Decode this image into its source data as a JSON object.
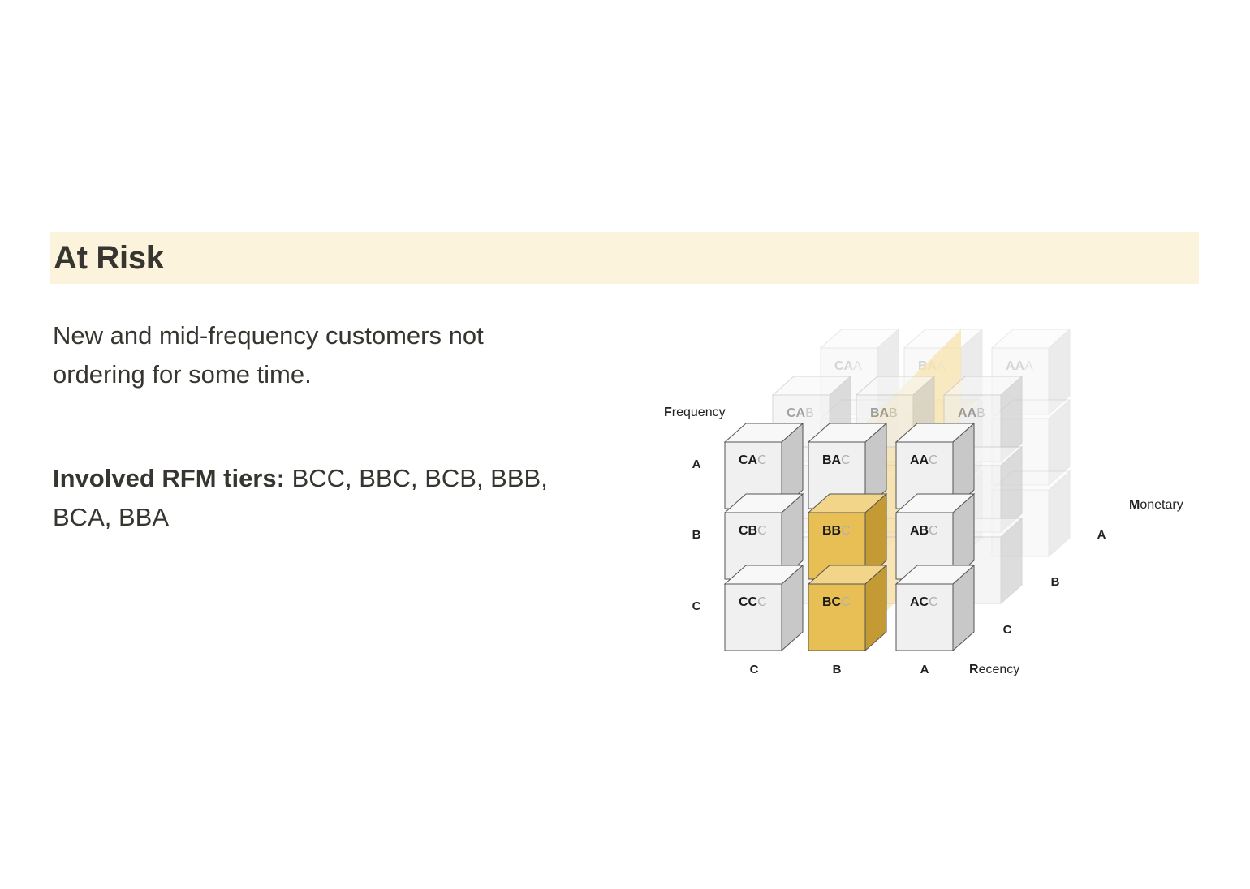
{
  "section": {
    "title": "At Risk",
    "description": "New and mid-frequency customers not ordering for some time.",
    "tiers_label": "Involved RFM tiers:",
    "tiers_list": "BCC, BBC, BCB, BBB, BCA, BBA"
  },
  "diagram": {
    "axis_titles": {
      "frequency": {
        "initial": "F",
        "rest": "requency"
      },
      "recency": {
        "initial": "R",
        "rest": "ecency"
      },
      "monetary": {
        "initial": "M",
        "rest": "onetary"
      }
    },
    "frequency_levels": [
      "A",
      "B",
      "C"
    ],
    "recency_levels": [
      "C",
      "B",
      "A"
    ],
    "monetary_levels": [
      "A",
      "B",
      "C"
    ],
    "highlighted_tiers": [
      "BCC",
      "BBC",
      "BCB",
      "BBB",
      "BCA",
      "BBA"
    ],
    "front_layer_cubes": [
      {
        "prefix": "CA",
        "suffix": "C"
      },
      {
        "prefix": "BA",
        "suffix": "C"
      },
      {
        "prefix": "AA",
        "suffix": "C"
      },
      {
        "prefix": "CB",
        "suffix": "C"
      },
      {
        "prefix": "BB",
        "suffix": "C"
      },
      {
        "prefix": "AB",
        "suffix": "C"
      },
      {
        "prefix": "CC",
        "suffix": "C"
      },
      {
        "prefix": "BC",
        "suffix": "C"
      },
      {
        "prefix": "AC",
        "suffix": "C"
      }
    ],
    "middle_layer_cubes": [
      {
        "prefix": "CA",
        "suffix": "B"
      },
      {
        "prefix": "BA",
        "suffix": "B"
      },
      {
        "prefix": "AA",
        "suffix": "B"
      }
    ],
    "back_layer_cubes": [
      {
        "prefix": "CA",
        "suffix": "A"
      },
      {
        "prefix": "BA",
        "suffix": "A"
      },
      {
        "prefix": "AA",
        "suffix": "A"
      }
    ],
    "colors": {
      "highlight_front": "#e8bf55",
      "highlight_top": "#f2d588",
      "highlight_side": "#c49a35",
      "highlight_faded": "#f7e3ae",
      "cube_front": "#f0f0f0",
      "cube_top": "#f8f8f8",
      "cube_side": "#c8c8c8",
      "cube_stroke": "#555555",
      "faded_stroke": "#bbbbbb",
      "label_dark": "#1a1a1a",
      "label_muted": "#b0b0b0"
    }
  }
}
